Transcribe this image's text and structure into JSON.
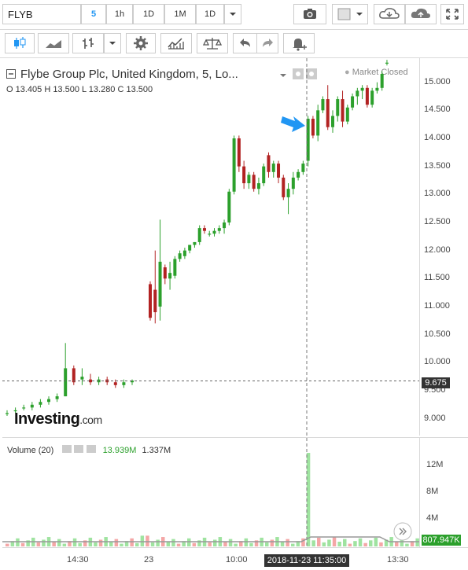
{
  "toolbar": {
    "symbol": "FLYB",
    "intervals": [
      "5",
      "1h",
      "1D",
      "1M",
      "1D"
    ],
    "active_interval": "5"
  },
  "legend": {
    "title": "Flybe Group Plc, United Kingdom, 5, Lo...",
    "ohlc": "O 13.405  H 13.500  L 13.280  C 13.500",
    "market_status": "Market Closed"
  },
  "price_axis": [
    "15.000",
    "14.500",
    "14.000",
    "13.500",
    "13.000",
    "12.500",
    "12.000",
    "11.500",
    "11.000",
    "10.500",
    "10.000",
    "9.500",
    "9.000"
  ],
  "current_price": "9.675",
  "volume": {
    "legend_label": "Volume (20)",
    "value1": "13.939M",
    "value2": "1.337M",
    "axis": [
      "12M",
      "8M",
      "4M"
    ],
    "current": "807.947K"
  },
  "time_axis": [
    "14:30",
    "23",
    "10:00",
    "13:30"
  ],
  "crosshair_time": "2018-11-23 11:35:00",
  "logo": {
    "main": "Investing",
    "suffix": ".com"
  },
  "colors": {
    "up": "#2ca02c",
    "down": "#b22222",
    "accent": "#2196f3"
  },
  "chart_data": {
    "type": "candlestick",
    "candles": [
      [
        9.1,
        9.15,
        9.05,
        9.1
      ],
      [
        9.15,
        9.2,
        9.1,
        9.15
      ],
      [
        9.2,
        9.25,
        9.15,
        9.2
      ],
      [
        9.2,
        9.3,
        9.15,
        9.25
      ],
      [
        9.25,
        9.35,
        9.2,
        9.3
      ],
      [
        9.3,
        9.4,
        9.25,
        9.35
      ],
      [
        9.35,
        9.45,
        9.3,
        9.4
      ],
      [
        9.4,
        10.35,
        9.4,
        9.9
      ],
      [
        9.9,
        9.95,
        9.6,
        9.65
      ],
      [
        9.7,
        9.9,
        9.6,
        9.75
      ],
      [
        9.7,
        9.8,
        9.6,
        9.65
      ],
      [
        9.65,
        9.75,
        9.6,
        9.7
      ],
      [
        9.7,
        9.75,
        9.6,
        9.65
      ],
      [
        9.65,
        9.7,
        9.55,
        9.6
      ],
      [
        9.6,
        9.7,
        9.55,
        9.65
      ],
      [
        9.65,
        9.7,
        9.6,
        9.68
      ],
      [
        11.4,
        11.45,
        10.75,
        10.8
      ],
      [
        11.3,
        12.0,
        10.7,
        10.9
      ],
      [
        11.0,
        12.55,
        10.75,
        11.8
      ],
      [
        11.7,
        11.75,
        11.4,
        11.5
      ],
      [
        11.5,
        11.8,
        11.3,
        11.6
      ],
      [
        11.55,
        11.9,
        11.5,
        11.85
      ],
      [
        11.85,
        12.0,
        11.8,
        11.95
      ],
      [
        11.9,
        12.05,
        11.85,
        12.0
      ],
      [
        12.0,
        12.1,
        11.95,
        12.1
      ],
      [
        12.1,
        12.15,
        12.05,
        12.15
      ],
      [
        12.15,
        12.45,
        12.1,
        12.4
      ],
      [
        12.4,
        12.45,
        12.3,
        12.35
      ],
      [
        12.3,
        12.35,
        12.25,
        12.3
      ],
      [
        12.3,
        12.4,
        12.25,
        12.35
      ],
      [
        12.35,
        12.45,
        12.3,
        12.4
      ],
      [
        12.4,
        12.55,
        12.3,
        12.5
      ],
      [
        12.5,
        13.1,
        12.45,
        13.05
      ],
      [
        13.05,
        14.05,
        13.0,
        14.0
      ],
      [
        14.0,
        14.05,
        13.4,
        13.5
      ],
      [
        13.5,
        13.6,
        13.1,
        13.2
      ],
      [
        13.2,
        13.4,
        13.1,
        13.35
      ],
      [
        13.35,
        13.4,
        13.05,
        13.1
      ],
      [
        13.1,
        13.3,
        13.0,
        13.2
      ],
      [
        13.2,
        13.55,
        13.15,
        13.5
      ],
      [
        13.7,
        13.75,
        13.3,
        13.4
      ],
      [
        13.4,
        13.6,
        13.3,
        13.55
      ],
      [
        13.55,
        13.6,
        13.2,
        13.3
      ],
      [
        13.3,
        13.35,
        12.9,
        12.95
      ],
      [
        12.95,
        13.2,
        12.65,
        13.1
      ],
      [
        13.1,
        13.4,
        13.0,
        13.3
      ],
      [
        13.3,
        13.45,
        13.25,
        13.4
      ],
      [
        13.4,
        13.6,
        13.35,
        13.55
      ],
      [
        13.6,
        14.4,
        13.5,
        14.35
      ],
      [
        14.35,
        14.4,
        14.0,
        14.05
      ],
      [
        14.05,
        14.6,
        13.95,
        14.5
      ],
      [
        14.5,
        14.75,
        14.45,
        14.7
      ],
      [
        14.7,
        14.95,
        14.15,
        14.2
      ],
      [
        14.2,
        14.5,
        14.1,
        14.4
      ],
      [
        14.4,
        14.75,
        14.3,
        14.7
      ],
      [
        14.7,
        14.85,
        14.2,
        14.3
      ],
      [
        14.3,
        14.6,
        14.25,
        14.55
      ],
      [
        14.55,
        14.8,
        14.5,
        14.75
      ],
      [
        14.75,
        14.9,
        14.6,
        14.85
      ],
      [
        14.85,
        14.95,
        14.7,
        14.9
      ],
      [
        14.9,
        14.95,
        14.55,
        14.6
      ],
      [
        14.6,
        14.9,
        14.55,
        14.85
      ],
      [
        14.85,
        15.0,
        14.8,
        14.9
      ],
      [
        14.9,
        15.2,
        14.85,
        15.15
      ],
      [
        15.35,
        15.4,
        15.3,
        15.35
      ]
    ]
  }
}
